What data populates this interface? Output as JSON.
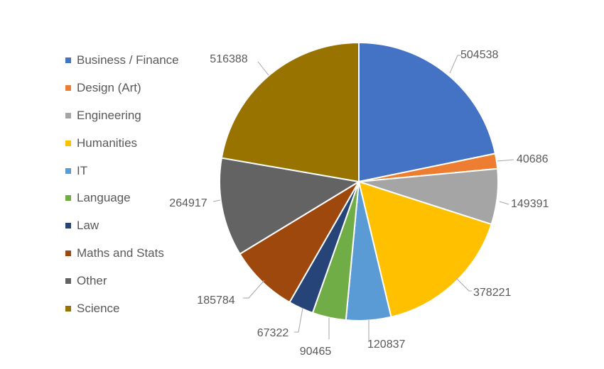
{
  "chart_data": {
    "type": "pie",
    "categories": [
      "Business / Finance",
      "Design (Art)",
      "Engineering",
      "Humanities",
      "IT",
      "Language",
      "Law",
      "Maths and Stats",
      "Other",
      "Science"
    ],
    "values": [
      504538,
      40686,
      149391,
      378221,
      120837,
      90465,
      67322,
      185784,
      264917,
      516388
    ],
    "data_labels": [
      "504538",
      "40686",
      "149391",
      "378221",
      "120837",
      "90465",
      "67322",
      "185784",
      "264917",
      "516388"
    ],
    "colors": [
      "#4472C4",
      "#ED7D31",
      "#A5A5A5",
      "#FFC000",
      "#5B9BD5",
      "#70AD47",
      "#264478",
      "#9E480E",
      "#636363",
      "#997300"
    ],
    "title": "",
    "legend_position": "left",
    "start_angle": "12 o'clock",
    "direction": "clockwise"
  }
}
